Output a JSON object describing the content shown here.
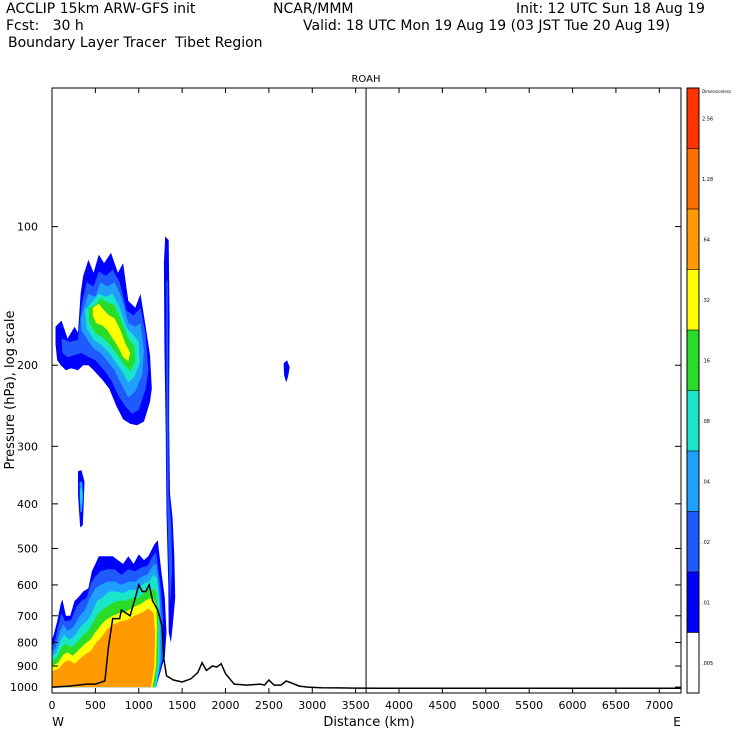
{
  "header": {
    "left_line1": "ACCLIP 15km ARW-GFS init",
    "center_line1": "NCAR/MMM",
    "right_line1": "Init: 12 UTC Sun 18 Aug 19",
    "left_line2": "Fcst:   30 h",
    "right_line2": "Valid: 18 UTC Mon 19 Aug 19 (03 JST Tue 20 Aug 19)",
    "line3": "Boundary Layer Tracer  Tibet Region"
  },
  "chart_data": {
    "type": "cross-section contour",
    "title": "ROAH",
    "xlabel": "Distance (km)",
    "ylabel": "Pressure (hPa), log scale",
    "x_left_label": "W",
    "x_right_label": "E",
    "xlim": [
      0,
      7250
    ],
    "ylim": [
      1030,
      50
    ],
    "y_scale": "log",
    "x_ticks": [
      0,
      500,
      1000,
      1500,
      2000,
      2500,
      3000,
      3500,
      4000,
      4500,
      5000,
      5500,
      6000,
      6500,
      7000
    ],
    "y_ticks": [
      100,
      200,
      300,
      400,
      500,
      600,
      700,
      800,
      900,
      1000
    ],
    "vertical_marker_km": 3620,
    "colorbar": {
      "title": "Dimensionless",
      "levels": [
        ".005",
        ".01",
        ".02",
        ".04",
        ".08",
        ".16",
        ".32",
        ".64",
        "1.28",
        "2.56"
      ],
      "colors": [
        "#ffffff",
        "#0000ff",
        "#1f5aff",
        "#1fa0ff",
        "#19e6c8",
        "#28dc28",
        "#ffff00",
        "#ff9b00",
        "#ff6e00",
        "#ff3300"
      ]
    },
    "terrain_km_hpa": [
      [
        0,
        1000
      ],
      [
        80,
        998
      ],
      [
        200,
        995
      ],
      [
        300,
        990
      ],
      [
        400,
        985
      ],
      [
        500,
        985
      ],
      [
        610,
        970
      ],
      [
        650,
        820
      ],
      [
        700,
        710
      ],
      [
        780,
        710
      ],
      [
        800,
        680
      ],
      [
        900,
        700
      ],
      [
        950,
        650
      ],
      [
        1000,
        600
      ],
      [
        1040,
        620
      ],
      [
        1080,
        620
      ],
      [
        1120,
        600
      ],
      [
        1160,
        650
      ],
      [
        1220,
        680
      ],
      [
        1270,
        740
      ],
      [
        1290,
        870
      ],
      [
        1320,
        945
      ],
      [
        1400,
        965
      ],
      [
        1500,
        975
      ],
      [
        1600,
        960
      ],
      [
        1680,
        930
      ],
      [
        1730,
        885
      ],
      [
        1780,
        920
      ],
      [
        1850,
        900
      ],
      [
        1900,
        905
      ],
      [
        1950,
        890
      ],
      [
        2000,
        935
      ],
      [
        2100,
        985
      ],
      [
        2250,
        990
      ],
      [
        2400,
        985
      ],
      [
        2450,
        990
      ],
      [
        2500,
        965
      ],
      [
        2560,
        990
      ],
      [
        2640,
        990
      ],
      [
        2700,
        970
      ],
      [
        2760,
        980
      ],
      [
        2850,
        995
      ],
      [
        2950,
        1000
      ],
      [
        3100,
        1003
      ],
      [
        3300,
        1004
      ],
      [
        3500,
        1005
      ],
      [
        4000,
        1006
      ],
      [
        5000,
        1006
      ],
      [
        6000,
        1006
      ],
      [
        7250,
        1006
      ]
    ],
    "plumes": [
      {
        "name": "upper plume",
        "x_km": [
          50,
          1200
        ],
        "p_hpa": [
          115,
          270
        ],
        "max_level": ".32"
      },
      {
        "name": "narrow column",
        "x_km": [
          1290,
          1390
        ],
        "p_hpa": [
          105,
          800
        ],
        "max_level": ".02"
      },
      {
        "name": "small blob",
        "x_km": [
          2670,
          2740
        ],
        "p_hpa": [
          200,
          215
        ],
        "max_level": ".02"
      },
      {
        "name": "mid-level blob",
        "x_km": [
          300,
          370
        ],
        "p_hpa": [
          340,
          450
        ],
        "max_level": ".08"
      },
      {
        "name": "boundary layer",
        "x_km": [
          0,
          1500
        ],
        "p_hpa": [
          480,
          1000
        ],
        "max_level": "1.28"
      }
    ]
  }
}
